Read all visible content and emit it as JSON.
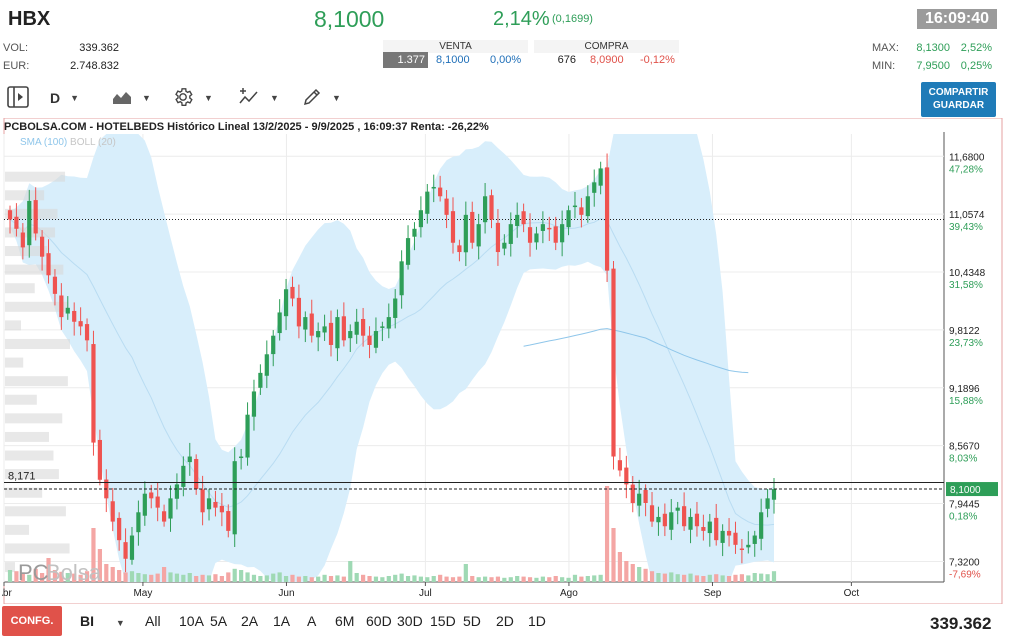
{
  "header": {
    "ticker": "HBX",
    "price": "8,1000",
    "change_pct": "2,14%",
    "change_abs": "(0,1699)",
    "time": "16:09:40"
  },
  "stats": {
    "vol_label": "VOL:",
    "vol_value": "339.362",
    "eur_label": "EUR:",
    "eur_value": "2.748.832",
    "max_label": "MAX:",
    "max_value": "8,1300",
    "max_pct": "2,52%",
    "min_label": "MIN:",
    "min_value": "7,9500",
    "min_pct": "0,25%"
  },
  "quote": {
    "venta_label": "VENTA",
    "venta_qty": "1.377",
    "venta_price": "8,1000",
    "venta_pct": "0,00%",
    "compra_label": "COMPRA",
    "compra_qty": "676",
    "compra_price": "8,0900",
    "compra_pct": "-0,12%"
  },
  "toolbar": {
    "period": "D",
    "share_line1": "COMPARTIR",
    "share_line2": "GUARDAR",
    "chart_icon": "area-chart-icon",
    "settings_icon": "gear-icon",
    "indicators_icon": "indicators-icon",
    "draw_icon": "pencil-icon",
    "panel_icon": "panel-toggle-icon"
  },
  "chart": {
    "title": "PCBOLSA.COM - HOTELBEDS Histórico Lineal 13/2/2025 - 9/9/2025 , 16:09:37 Renta: -26,22%",
    "sma_label": "SMA (100)",
    "boll_label": "BOLL (20)",
    "watermark_left": "PC",
    "watermark_right": "Bolsa",
    "hline_label": "8,171",
    "current_label": "8,1000",
    "colors": {
      "up": "#2e9e58",
      "down": "#ef5350",
      "band": "#d8eefb",
      "sma": "#8fc6ea",
      "accent": "#1f7bb8"
    }
  },
  "chart_data": {
    "type": "candlestick",
    "y_ticks": [
      {
        "price": "11,6800",
        "pct": "47,28%"
      },
      {
        "price": "11,0574",
        "pct": "39,43%"
      },
      {
        "price": "10,4348",
        "pct": "31,58%"
      },
      {
        "price": "9,8122",
        "pct": "23,73%"
      },
      {
        "price": "9,1896",
        "pct": "15,88%"
      },
      {
        "price": "8,5670",
        "pct": "8,03%"
      },
      {
        "price": "7,9445",
        "pct": "0,18%"
      },
      {
        "price": "7,3200",
        "pct": "-7,69%"
      }
    ],
    "y_tick_values": [
      11.68,
      11.0574,
      10.4348,
      9.8122,
      9.1896,
      8.567,
      7.9445,
      7.32
    ],
    "ylim": [
      7.1,
      11.92
    ],
    "x_labels": [
      "Abr",
      "May",
      "Jun",
      "Jul",
      "Ago",
      "Sep",
      "Oct"
    ],
    "x_label_days": [
      48,
      78,
      109,
      139,
      170,
      201,
      231
    ],
    "x_range_days": [
      48,
      251
    ],
    "reference_line": 8.171,
    "dotted_line": 11.0,
    "current_price": 8.1,
    "closes": [
      11.0,
      10.9,
      10.7,
      11.2,
      10.85,
      10.6,
      10.4,
      10.2,
      9.95,
      10.05,
      9.9,
      9.85,
      9.7,
      8.6,
      8.2,
      8.0,
      7.75,
      7.55,
      7.35,
      7.6,
      7.85,
      8.05,
      8.0,
      7.9,
      7.75,
      8.0,
      8.15,
      8.35,
      8.45,
      8.1,
      7.85,
      8.0,
      7.9,
      7.85,
      7.65,
      8.4,
      8.45,
      8.9,
      9.15,
      9.35,
      9.55,
      9.75,
      10.0,
      10.25,
      10.15,
      9.85,
      9.95,
      9.75,
      9.8,
      9.85,
      9.65,
      9.95,
      9.7,
      9.8,
      9.9,
      9.75,
      9.65,
      9.8,
      9.85,
      9.95,
      10.15,
      10.55,
      10.8,
      10.9,
      11.1,
      11.3,
      11.35,
      11.25,
      11.05,
      10.75,
      10.65,
      11.05,
      10.75,
      10.95,
      11.25,
      11.0,
      10.65,
      10.75,
      10.95,
      11.05,
      10.95,
      10.75,
      10.85,
      10.95,
      10.9,
      10.75,
      10.95,
      11.1,
      11.15,
      11.05,
      11.25,
      11.4,
      11.55,
      10.45,
      8.45,
      8.3,
      8.15,
      7.95,
      8.05,
      7.95,
      7.75,
      7.8,
      7.7,
      7.85,
      7.9,
      7.7,
      7.8,
      7.7,
      7.65,
      7.75,
      7.55,
      7.65,
      7.6,
      7.5,
      7.45,
      7.5,
      7.6,
      7.85,
      8.0,
      8.1
    ],
    "volumes": [
      0.2,
      0.18,
      0.16,
      0.12,
      0.22,
      0.15,
      0.4,
      0.2,
      0.17,
      0.15,
      0.14,
      0.12,
      0.18,
      0.9,
      0.55,
      0.3,
      0.25,
      0.2,
      0.16,
      0.18,
      0.15,
      0.13,
      0.12,
      0.14,
      0.25,
      0.16,
      0.14,
      0.12,
      0.15,
      0.1,
      0.12,
      0.11,
      0.13,
      0.1,
      0.16,
      0.22,
      0.2,
      0.16,
      0.12,
      0.1,
      0.11,
      0.14,
      0.16,
      0.1,
      0.12,
      0.09,
      0.1,
      0.08,
      0.09,
      0.12,
      0.1,
      0.11,
      0.09,
      0.35,
      0.15,
      0.12,
      0.1,
      0.09,
      0.08,
      0.1,
      0.12,
      0.14,
      0.1,
      0.11,
      0.09,
      0.08,
      0.1,
      0.12,
      0.09,
      0.08,
      0.09,
      0.3,
      0.1,
      0.08,
      0.09,
      0.08,
      0.09,
      0.07,
      0.08,
      0.1,
      0.09,
      0.08,
      0.07,
      0.09,
      0.08,
      0.1,
      0.08,
      0.07,
      0.12,
      0.09,
      0.1,
      0.11,
      0.12,
      2.0,
      0.9,
      0.5,
      0.35,
      0.3,
      0.25,
      0.22,
      0.18,
      0.15,
      0.14,
      0.16,
      0.13,
      0.12,
      0.14,
      0.11,
      0.1,
      0.12,
      0.13,
      0.11,
      0.1,
      0.12,
      0.13,
      0.11,
      0.15,
      0.14,
      0.13,
      0.18
    ]
  },
  "bottom": {
    "config_label": "CONFG.",
    "interval": "BI",
    "periods": [
      "All",
      "10A",
      "5A",
      "2A",
      "1A",
      "A",
      "6M",
      "60D",
      "30D",
      "15D",
      "5D",
      "2D",
      "1D"
    ],
    "total_volume": "339.362"
  }
}
